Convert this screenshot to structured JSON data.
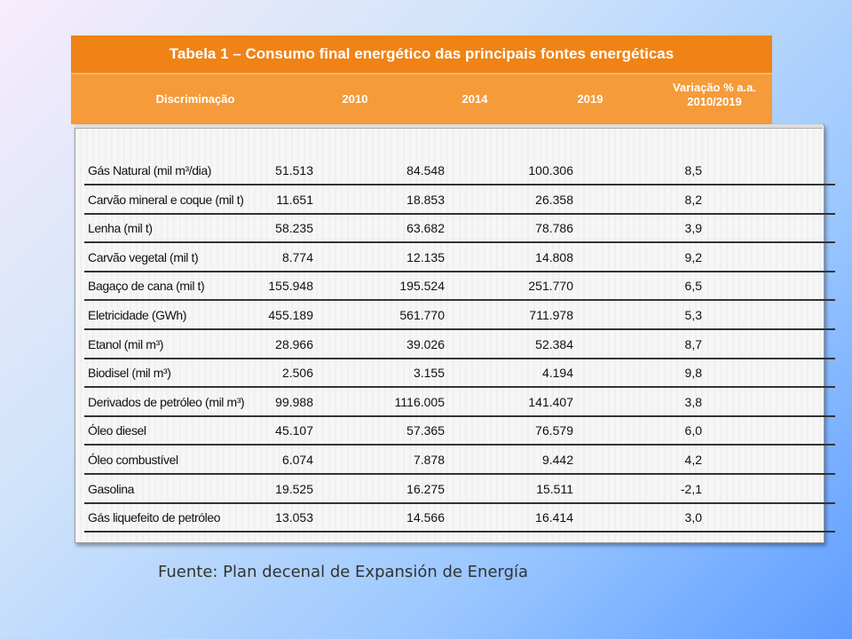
{
  "table": {
    "title": "Tabela 1 – Consumo final energético das principais fontes energéticas",
    "headers": {
      "discriminacao": "Discriminação",
      "y2010": "2010",
      "y2014": "2014",
      "y2019": "2019",
      "variacao_line1": "Variação % a.a.",
      "variacao_line2": "2010/2019"
    },
    "rows": [
      {
        "label": "Gás Natural (mil m³/dia)",
        "v2010": "51.513",
        "v2014": "84.548",
        "v2019": "100.306",
        "var": "8,5"
      },
      {
        "label": "Carvão mineral e coque (mil t)",
        "v2010": "11.651",
        "v2014": "18.853",
        "v2019": "26.358",
        "var": "8,2"
      },
      {
        "label": "Lenha (mil t)",
        "v2010": "58.235",
        "v2014": "63.682",
        "v2019": "78.786",
        "var": "3,9"
      },
      {
        "label": "Carvão vegetal (mil t)",
        "v2010": "8.774",
        "v2014": "12.135",
        "v2019": "14.808",
        "var": "9,2"
      },
      {
        "label": "Bagaço de cana (mil t)",
        "v2010": "155.948",
        "v2014": "195.524",
        "v2019": "251.770",
        "var": "6,5"
      },
      {
        "label": "Eletricidade (GWh)",
        "v2010": "455.189",
        "v2014": "561.770",
        "v2019": "711.978",
        "var": "5,3"
      },
      {
        "label": "Etanol (mil m³)",
        "v2010": "28.966",
        "v2014": "39.026",
        "v2019": "52.384",
        "var": "8,7"
      },
      {
        "label": "Biodisel (mil m³)",
        "v2010": "2.506",
        "v2014": "3.155",
        "v2019": "4.194",
        "var": "9,8"
      },
      {
        "label": "Derivados de petróleo (mil m³)",
        "v2010": "99.988",
        "v2014": "1116.005",
        "v2019": "141.407",
        "var": "3,8"
      },
      {
        "label": "Óleo diesel",
        "v2010": "45.107",
        "v2014": "57.365",
        "v2019": "76.579",
        "var": "6,0"
      },
      {
        "label": "Óleo combustível",
        "v2010": "6.074",
        "v2014": "7.878",
        "v2019": "9.442",
        "var": "4,2"
      },
      {
        "label": "Gasolina",
        "v2010": "19.525",
        "v2014": "16.275",
        "v2019": "15.511",
        "var": "-2,1"
      },
      {
        "label": "Gás liquefeito de petróleo",
        "v2010": "13.053",
        "v2014": "14.566",
        "v2019": "16.414",
        "var": "3,0"
      }
    ]
  },
  "source": "Fuente: Plan decenal de Expansión de Energía"
}
